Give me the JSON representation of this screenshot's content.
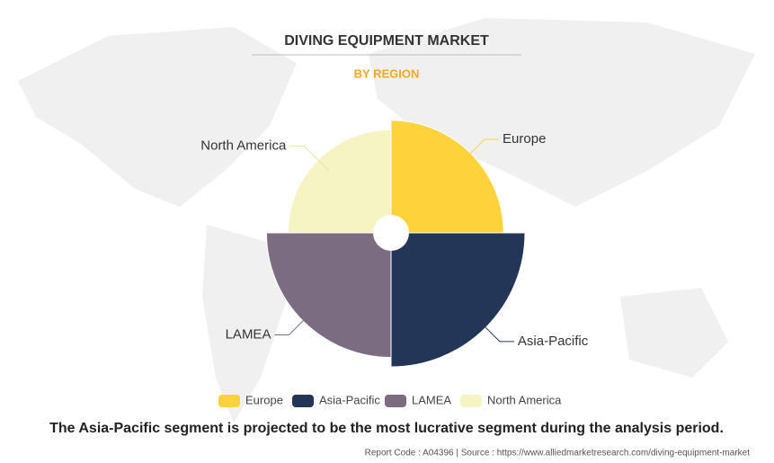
{
  "chart_data": {
    "type": "polar-area",
    "title": "DIVING EQUIPMENT MARKET",
    "subtitle": "BY REGION",
    "categories": [
      "Europe",
      "Asia-Pacific",
      "LAMEA",
      "North America"
    ],
    "values": [
      84,
      100,
      93,
      77
    ],
    "colors": [
      "#fdd23b",
      "#233657",
      "#7b6c81",
      "#f7f4c3"
    ],
    "annotation": "The Asia-Pacific segment is projected to be the most lucrative segment during the analysis period.",
    "source": "Report Code : A04396  |  Source : https://www.alliedmarketresearch.com/diving-equipment-market"
  }
}
